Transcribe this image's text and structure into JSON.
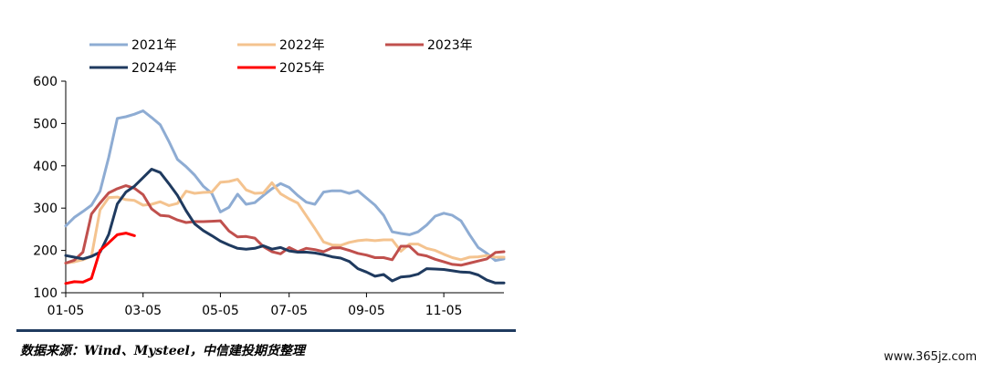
{
  "chart_data": {
    "type": "line",
    "ylim": [
      100,
      600
    ],
    "yticks": [
      100,
      200,
      300,
      400,
      500,
      600
    ],
    "xlim": [
      0,
      51
    ],
    "xticks": [
      {
        "label": "01-05",
        "i": 0
      },
      {
        "label": "03-05",
        "i": 9
      },
      {
        "label": "05-05",
        "i": 18
      },
      {
        "label": "07-05",
        "i": 26
      },
      {
        "label": "09-05",
        "i": 35
      },
      {
        "label": "11-05",
        "i": 44
      }
    ],
    "grid": false,
    "legend": "top",
    "series": [
      {
        "name": "2021年",
        "color": "#8eacd3",
        "values": [
          258,
          278,
          292,
          307,
          340,
          420,
          512,
          516,
          522,
          530,
          514,
          497,
          458,
          415,
          398,
          378,
          352,
          335,
          291,
          302,
          333,
          309,
          313,
          330,
          346,
          358,
          349,
          330,
          314,
          309,
          338,
          341,
          341,
          335,
          341,
          324,
          307,
          283,
          244,
          240,
          237,
          244,
          260,
          281,
          288,
          283,
          270,
          237,
          207,
          193,
          176,
          180
        ]
      },
      {
        "name": "2022年",
        "color": "#f4c38f",
        "values": [
          170,
          173,
          178,
          186,
          296,
          325,
          326,
          320,
          318,
          307,
          309,
          315,
          306,
          311,
          340,
          335,
          337,
          338,
          361,
          363,
          368,
          343,
          335,
          336,
          360,
          334,
          322,
          312,
          282,
          252,
          220,
          213,
          212,
          219,
          223,
          225,
          223,
          225,
          225,
          198,
          215,
          215,
          205,
          200,
          191,
          183,
          178,
          184,
          185,
          188,
          184,
          184
        ]
      },
      {
        "name": "2023年",
        "color": "#c0504d",
        "values": [
          170,
          177,
          196,
          286,
          312,
          336,
          346,
          353,
          347,
          332,
          298,
          283,
          281,
          272,
          266,
          268,
          268,
          269,
          270,
          246,
          232,
          233,
          229,
          209,
          197,
          192,
          207,
          197,
          205,
          202,
          197,
          206,
          206,
          200,
          193,
          189,
          183,
          183,
          178,
          210,
          210,
          191,
          187,
          179,
          173,
          167,
          165,
          170,
          175,
          180,
          195,
          197
        ]
      },
      {
        "name": "2024年",
        "color": "#1f3a5f",
        "values": [
          188,
          184,
          180,
          186,
          196,
          238,
          310,
          338,
          352,
          372,
          392,
          384,
          358,
          330,
          294,
          263,
          247,
          235,
          222,
          213,
          205,
          203,
          205,
          211,
          203,
          207,
          199,
          196,
          196,
          194,
          190,
          185,
          182,
          174,
          157,
          149,
          139,
          143,
          128,
          137,
          139,
          144,
          157,
          156,
          155,
          152,
          149,
          148,
          142,
          130,
          123,
          123
        ]
      },
      {
        "name": "2025年",
        "color": "#ff0000",
        "values": [
          122,
          126,
          125,
          134,
          200,
          218,
          237,
          241,
          235
        ]
      }
    ]
  },
  "source_text": "数据来源：Wind、Mysteel，中信建投期货整理",
  "watermark_text": "www.365jz.com"
}
